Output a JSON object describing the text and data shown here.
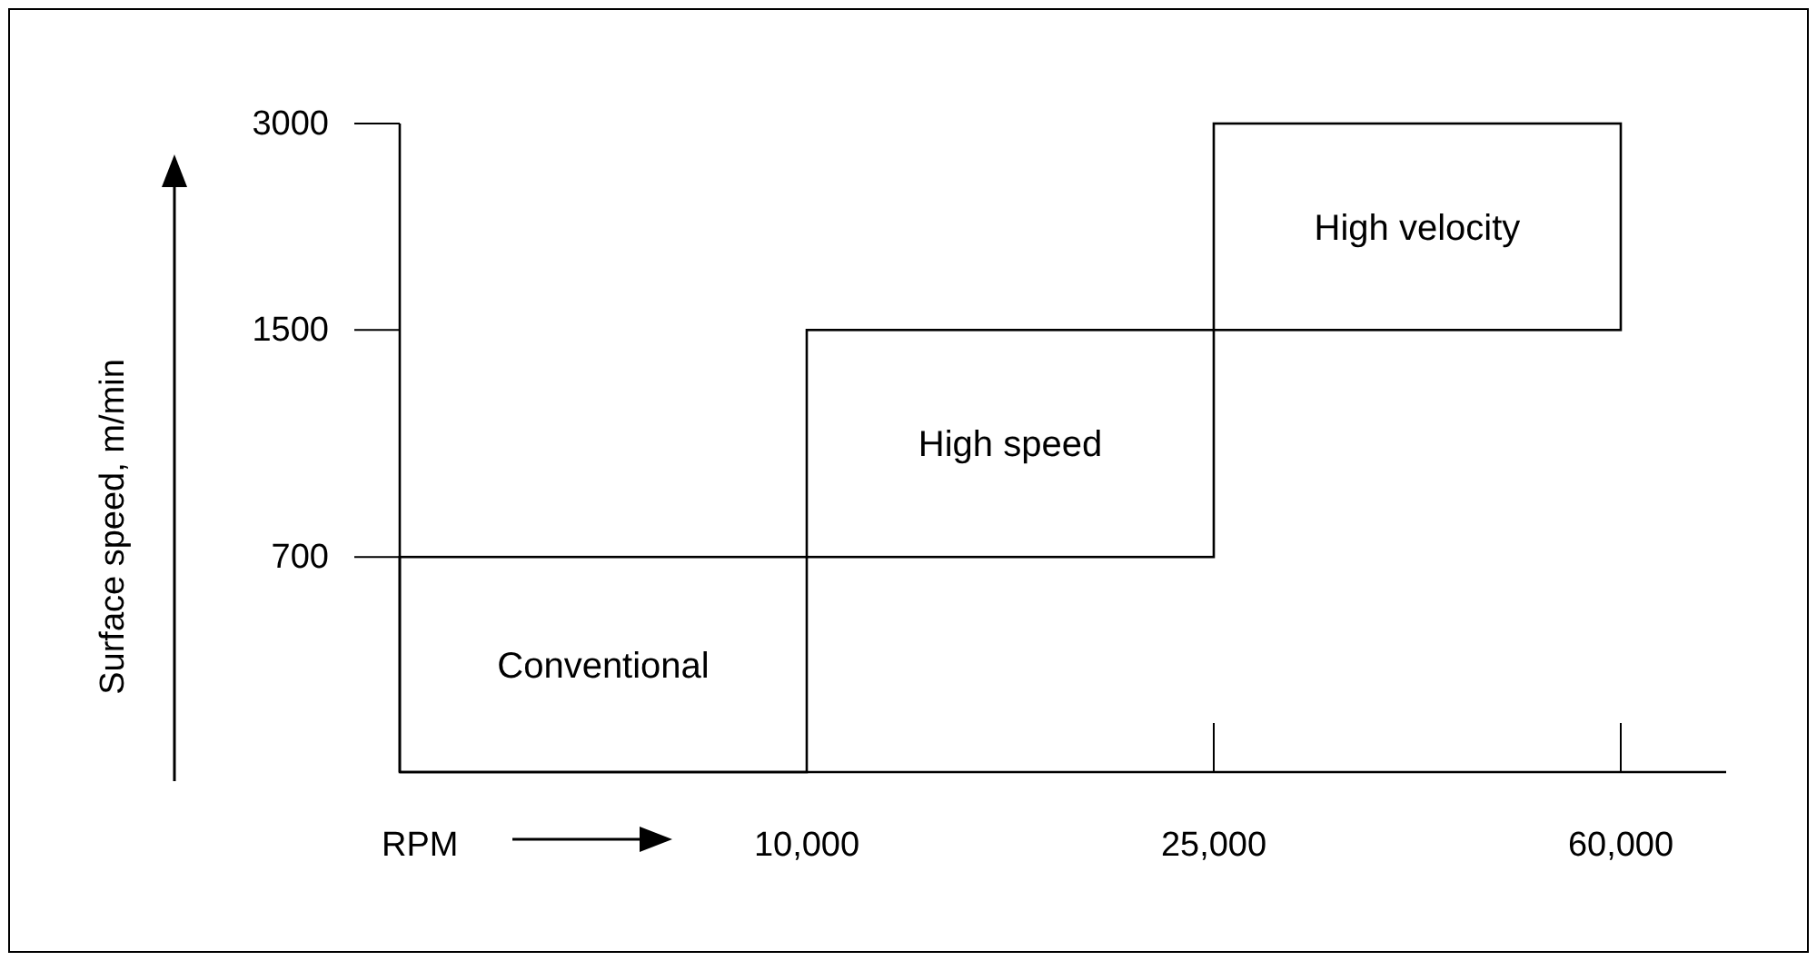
{
  "chart_data": {
    "type": "bar",
    "xlabel": "RPM",
    "ylabel": "Surface speed, m/min",
    "categories": [
      "10,000",
      "25,000",
      "60,000"
    ],
    "base": [
      null,
      700,
      1500
    ],
    "values": [
      700,
      800,
      1500
    ],
    "color": "#ffffff",
    "annotations": [
      "Conventional",
      "High speed",
      "High velocity"
    ],
    "log": true,
    "ylim": [
      340,
      3000
    ],
    "yticks": [
      700,
      1500,
      3000
    ],
    "grid": false
  }
}
